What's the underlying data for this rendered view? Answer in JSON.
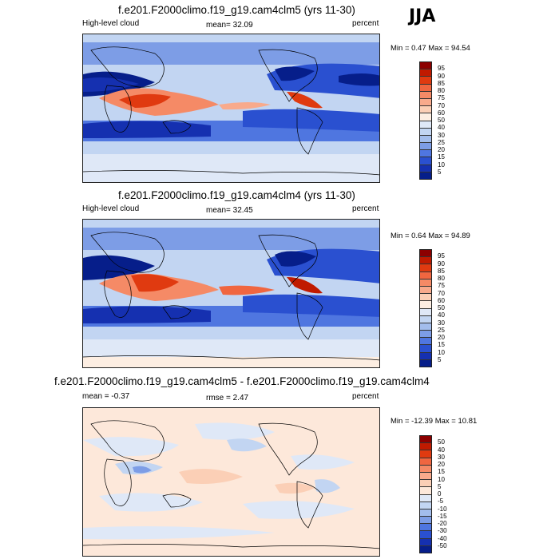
{
  "season": "JJA",
  "panels": [
    {
      "title": "f.e201.F2000climo.f19_g19.cam4clm5 (yrs 11-30)",
      "left_label": "High-level cloud",
      "center_label": "mean=  32.09",
      "right_label": "percent",
      "minmax": "Min =  0.47 Max =  94.54",
      "levels": [
        "95",
        "90",
        "85",
        "80",
        "75",
        "70",
        "60",
        "50",
        "40",
        "30",
        "25",
        "20",
        "15",
        "10",
        "5"
      ],
      "colors": [
        "#8c0000",
        "#c01a00",
        "#e03a10",
        "#f06640",
        "#f58a66",
        "#f8aa8c",
        "#fbcfb6",
        "#fdeee2",
        "#dfe8f7",
        "#c2d5f2",
        "#a3bdec",
        "#7d9de6",
        "#4f76e0",
        "#2a50d0",
        "#1530b0",
        "#061e8a"
      ]
    },
    {
      "title": "f.e201.F2000climo.f19_g19.cam4clm4 (yrs 11-30)",
      "left_label": "High-level cloud",
      "center_label": "mean=  32.45",
      "right_label": "percent",
      "minmax": "Min =  0.64 Max =  94.89",
      "levels": [
        "95",
        "90",
        "85",
        "80",
        "75",
        "70",
        "60",
        "50",
        "40",
        "30",
        "25",
        "20",
        "15",
        "10",
        "5"
      ],
      "colors": [
        "#8c0000",
        "#c01a00",
        "#e03a10",
        "#f06640",
        "#f58a66",
        "#f8aa8c",
        "#fbcfb6",
        "#fdeee2",
        "#dfe8f7",
        "#c2d5f2",
        "#a3bdec",
        "#7d9de6",
        "#4f76e0",
        "#2a50d0",
        "#1530b0",
        "#061e8a"
      ]
    },
    {
      "title": "f.e201.F2000climo.f19_g19.cam4clm5 - f.e201.F2000climo.f19_g19.cam4clm4",
      "left_label": "mean =  -0.37",
      "center_label": "rmse =   2.47",
      "right_label": "percent",
      "minmax": "Min = -12.39 Max =  10.81",
      "levels": [
        "50",
        "40",
        "30",
        "20",
        "15",
        "10",
        "5",
        "0",
        "-5",
        "-10",
        "-15",
        "-20",
        "-30",
        "-40",
        "-50"
      ],
      "colors": [
        "#8c0000",
        "#c01a00",
        "#e03a10",
        "#f06640",
        "#f58a66",
        "#f8aa8c",
        "#fbcfb6",
        "#fde8da",
        "#dfe8f7",
        "#c2d5f2",
        "#a3bdec",
        "#7d9de6",
        "#4f76e0",
        "#2a50d0",
        "#1530b0",
        "#061e8a"
      ]
    }
  ]
}
